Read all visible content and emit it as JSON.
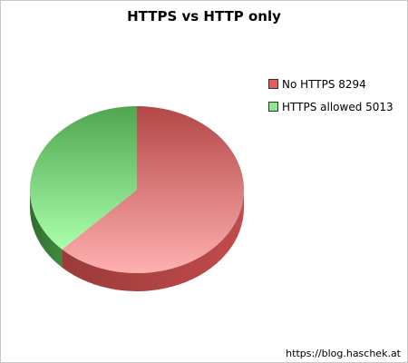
{
  "chart_data": {
    "type": "pie",
    "title": "HTTPS vs HTTP only",
    "slices": [
      {
        "label": "No HTTPS",
        "value": 8294,
        "color": "#e85c5c",
        "legend_text": "No HTTPS 8294"
      },
      {
        "label": "HTTPS allowed",
        "value": 5013,
        "color": "#8ce88c",
        "legend_text": "HTTPS allowed 5013"
      }
    ],
    "legend_position": "right",
    "style": "3d"
  },
  "credit": "https://blog.haschek.at"
}
